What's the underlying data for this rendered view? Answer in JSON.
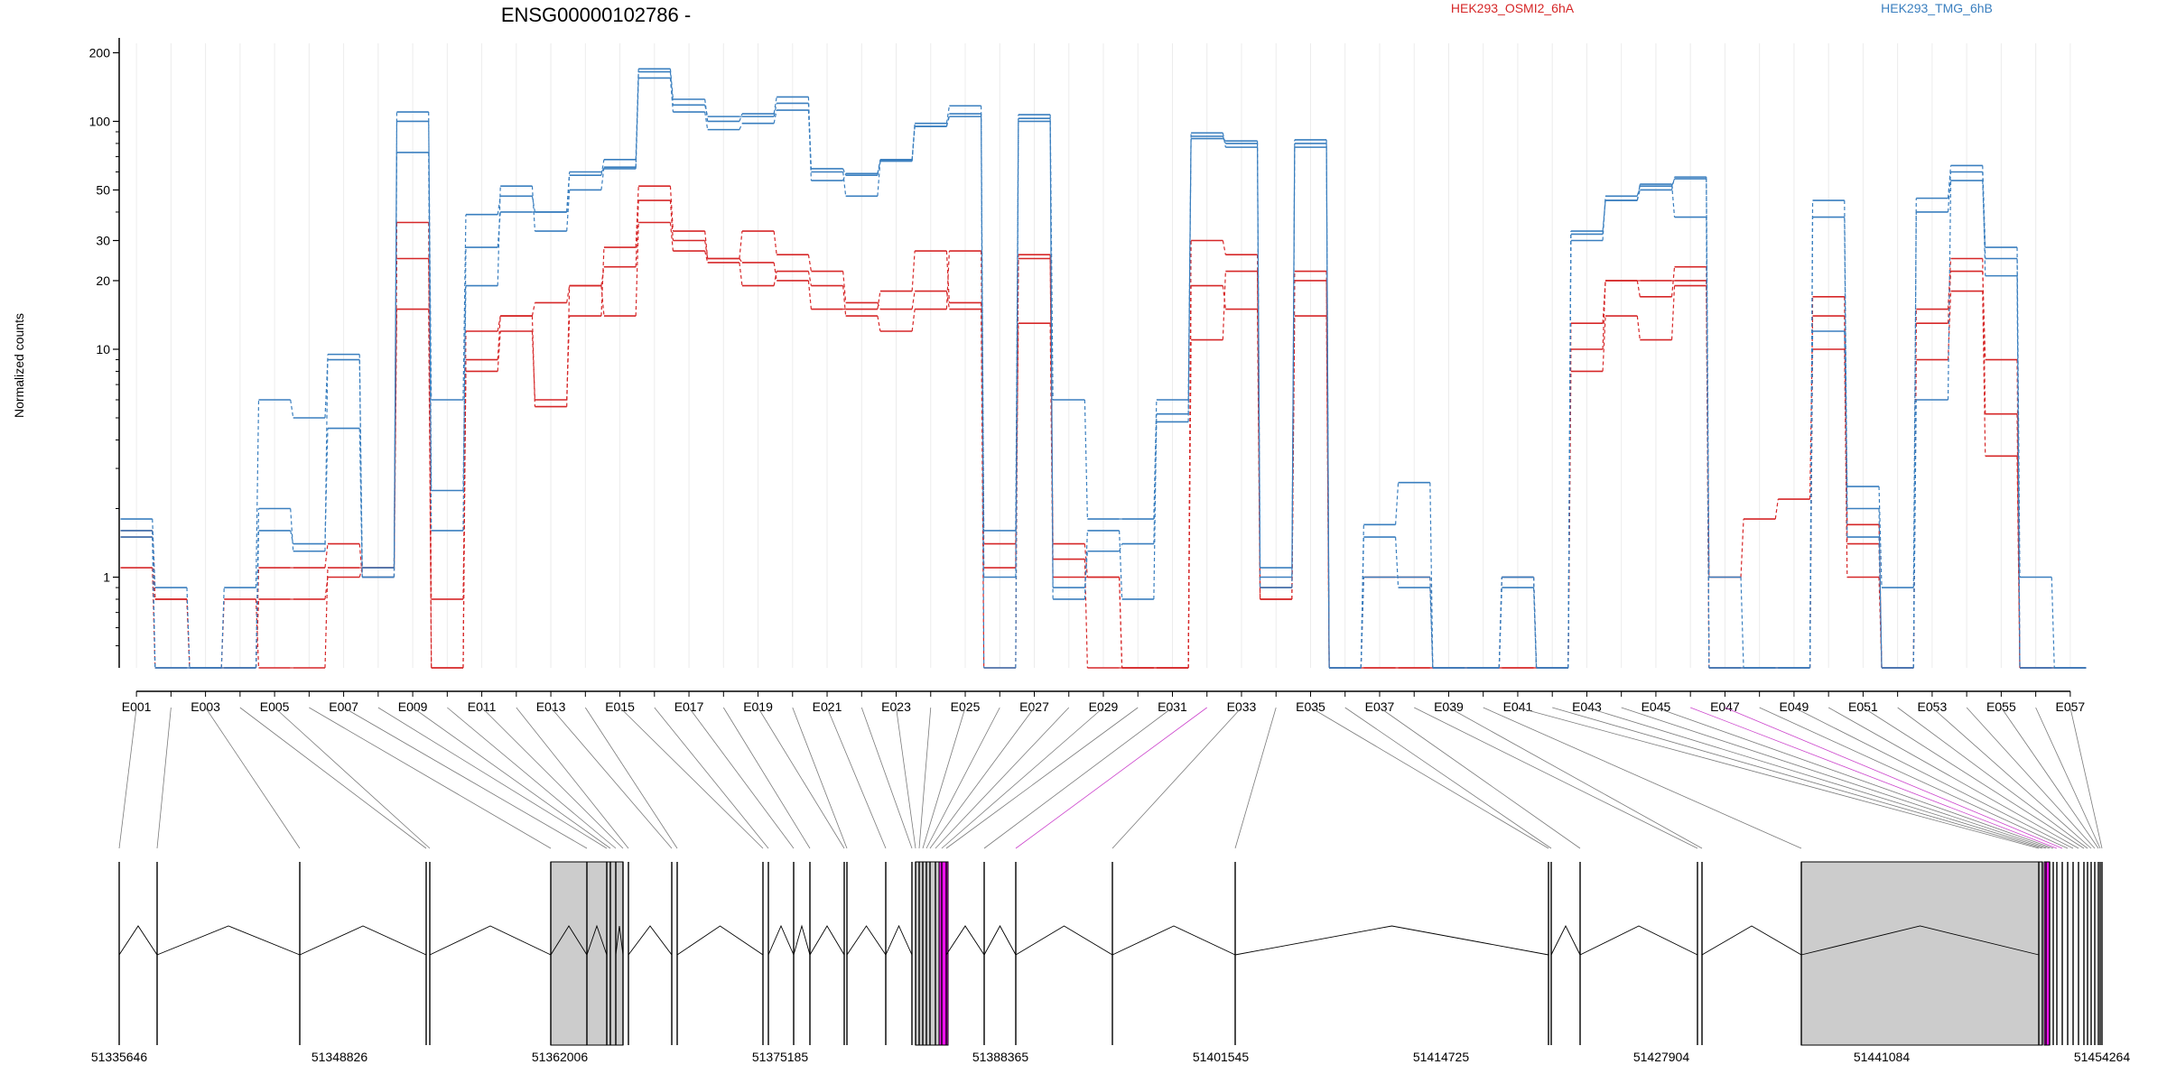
{
  "chart_data": {
    "type": "line",
    "title": "ENSG00000102786 -",
    "ylabel": "Normalized counts",
    "yscale": "log",
    "ylim": [
      0.4,
      220
    ],
    "y_ticks": [
      1,
      10,
      20,
      30,
      50,
      100,
      200
    ],
    "y_tick_labels": [
      "1",
      "10",
      "20",
      "30",
      "50",
      "100",
      "200"
    ],
    "legend": [
      {
        "name": "HEK293_OSMI2_6hA",
        "color": "#d62728"
      },
      {
        "name": "HEK293_TMG_6hB",
        "color": "#3a7fbf"
      }
    ],
    "categories": [
      "E001",
      "E002",
      "E003",
      "E004",
      "E005",
      "E006",
      "E007",
      "E008",
      "E009",
      "E010",
      "E011",
      "E012",
      "E013",
      "E014",
      "E015",
      "E016",
      "E017",
      "E018",
      "E019",
      "E020",
      "E021",
      "E022",
      "E023",
      "E024",
      "E025",
      "E026",
      "E027",
      "E028",
      "E029",
      "E030",
      "E031",
      "E032",
      "E033",
      "E034",
      "E035",
      "E036",
      "E037",
      "E038",
      "E039",
      "E040",
      "E041",
      "E042",
      "E043",
      "E044",
      "E045",
      "E046",
      "E047",
      "E048",
      "E049",
      "E050",
      "E051",
      "E052",
      "E053",
      "E054",
      "E055",
      "E056",
      "E057"
    ],
    "x_tick_labels": [
      "E001",
      "E003",
      "E005",
      "E007",
      "E009",
      "E011",
      "E013",
      "E015",
      "E017",
      "E019",
      "E021",
      "E023",
      "E025",
      "E027",
      "E029",
      "E031",
      "E033",
      "E035",
      "E037",
      "E039",
      "E041",
      "E043",
      "E045",
      "E047",
      "E049",
      "E051",
      "E053",
      "E055",
      "E057"
    ],
    "series": [
      {
        "group": "HEK293_OSMI2_6hA",
        "color": "#d62728",
        "values": [
          1.6,
          0.8,
          0.4,
          0.4,
          0.8,
          0.8,
          1.0,
          1.1,
          25,
          0.8,
          8,
          12,
          6,
          14,
          28,
          52,
          33,
          25,
          33,
          26,
          22,
          16,
          15,
          18,
          15,
          0.4,
          26,
          1.4,
          1.0,
          0.4,
          0.4,
          19,
          15,
          0.8,
          20,
          0.4,
          0.4,
          0.4,
          0.4,
          0.4,
          0.4,
          0.4,
          10,
          20,
          20,
          20,
          1.0,
          1.8,
          2.2,
          14,
          1.4,
          0.4,
          13,
          22,
          9,
          0.4,
          0.4
        ]
      },
      {
        "group": "HEK293_OSMI2_6hA",
        "color": "#d62728",
        "values": [
          1.5,
          0.8,
          0.4,
          0.4,
          1.1,
          1.1,
          1.4,
          1.0,
          15,
          0.4,
          9,
          14,
          5.6,
          19,
          14,
          36,
          27,
          24,
          19,
          22,
          19,
          14,
          12,
          15,
          27,
          1.4,
          13,
          1.0,
          1.0,
          0.4,
          0.4,
          11,
          22,
          0.9,
          14,
          0.4,
          1.0,
          1.0,
          0.4,
          0.4,
          1.0,
          0.4,
          8,
          14,
          11,
          19,
          0.4,
          0.4,
          0.4,
          10,
          1.0,
          0.4,
          15,
          25,
          5.2,
          0.4,
          0.4
        ]
      },
      {
        "group": "HEK293_OSMI2_6hA",
        "color": "#d62728",
        "values": [
          1.1,
          0.4,
          0.4,
          0.8,
          0.4,
          0.4,
          1.1,
          1.1,
          36,
          0.4,
          12,
          14,
          16,
          19,
          23,
          45,
          30,
          25,
          24,
          20,
          15,
          15,
          18,
          27,
          16,
          1.1,
          25,
          1.2,
          0.4,
          0.4,
          0.4,
          30,
          26,
          0.8,
          22,
          0.4,
          0.4,
          0.4,
          0.4,
          0.4,
          0.4,
          0.4,
          13,
          20,
          17,
          23,
          0.4,
          0.4,
          0.4,
          17,
          1.7,
          0.4,
          9,
          18,
          3.4,
          0.4,
          0.4
        ]
      },
      {
        "group": "HEK293_TMG_6hB",
        "color": "#3a7fbf",
        "values": [
          1.8,
          0.9,
          0.4,
          0.9,
          6,
          5,
          9,
          1.1,
          100,
          6,
          39,
          47,
          40,
          58,
          68,
          165,
          118,
          105,
          105,
          120,
          55,
          59,
          68,
          98,
          117,
          1.0,
          107,
          6,
          1.8,
          1.8,
          6,
          84,
          82,
          1.0,
          83,
          0.4,
          1.7,
          2.6,
          0.4,
          0.4,
          1.0,
          0.4,
          33,
          45,
          50,
          57,
          1.0,
          0.4,
          0.4,
          12,
          2.5,
          0.9,
          40,
          60,
          21,
          0.4,
          0.4
        ]
      },
      {
        "group": "HEK293_TMG_6hB",
        "color": "#3a7fbf",
        "values": [
          1.6,
          0.4,
          0.4,
          0.4,
          1.6,
          1.4,
          4.5,
          1.0,
          110,
          2.4,
          19,
          52,
          33,
          50,
          63,
          170,
          125,
          100,
          108,
          128,
          60,
          47,
          67,
          95,
          108,
          1.6,
          103,
          0.9,
          1.3,
          1.4,
          4.8,
          89,
          77,
          0.9,
          77,
          0.4,
          1.5,
          0.9,
          0.4,
          0.4,
          1.0,
          0.4,
          30,
          47,
          52,
          56,
          0.4,
          0.4,
          0.4,
          45,
          2.0,
          0.4,
          46,
          64,
          28,
          1.0,
          0.4
        ]
      },
      {
        "group": "HEK293_TMG_6hB",
        "color": "#3a7fbf",
        "values": [
          1.5,
          0.4,
          0.4,
          0.4,
          2.0,
          1.3,
          9.5,
          1.0,
          73,
          1.6,
          28,
          40,
          40,
          60,
          62,
          155,
          110,
          92,
          98,
          112,
          62,
          58,
          67,
          95,
          105,
          0.4,
          100,
          0.8,
          1.6,
          0.8,
          5.2,
          86,
          80,
          1.1,
          80,
          0.4,
          1.0,
          1.0,
          0.4,
          0.4,
          0.9,
          0.4,
          32,
          45,
          53,
          38,
          0.4,
          0.4,
          0.4,
          38,
          1.5,
          0.4,
          6,
          55,
          25,
          0.4,
          0.4
        ]
      }
    ],
    "genomic_axis": {
      "tick_labels": [
        "51335646",
        "51348826",
        "51362006",
        "51375185",
        "51388365",
        "51401545",
        "51414725",
        "51427904",
        "51441084",
        "51454264"
      ]
    }
  }
}
